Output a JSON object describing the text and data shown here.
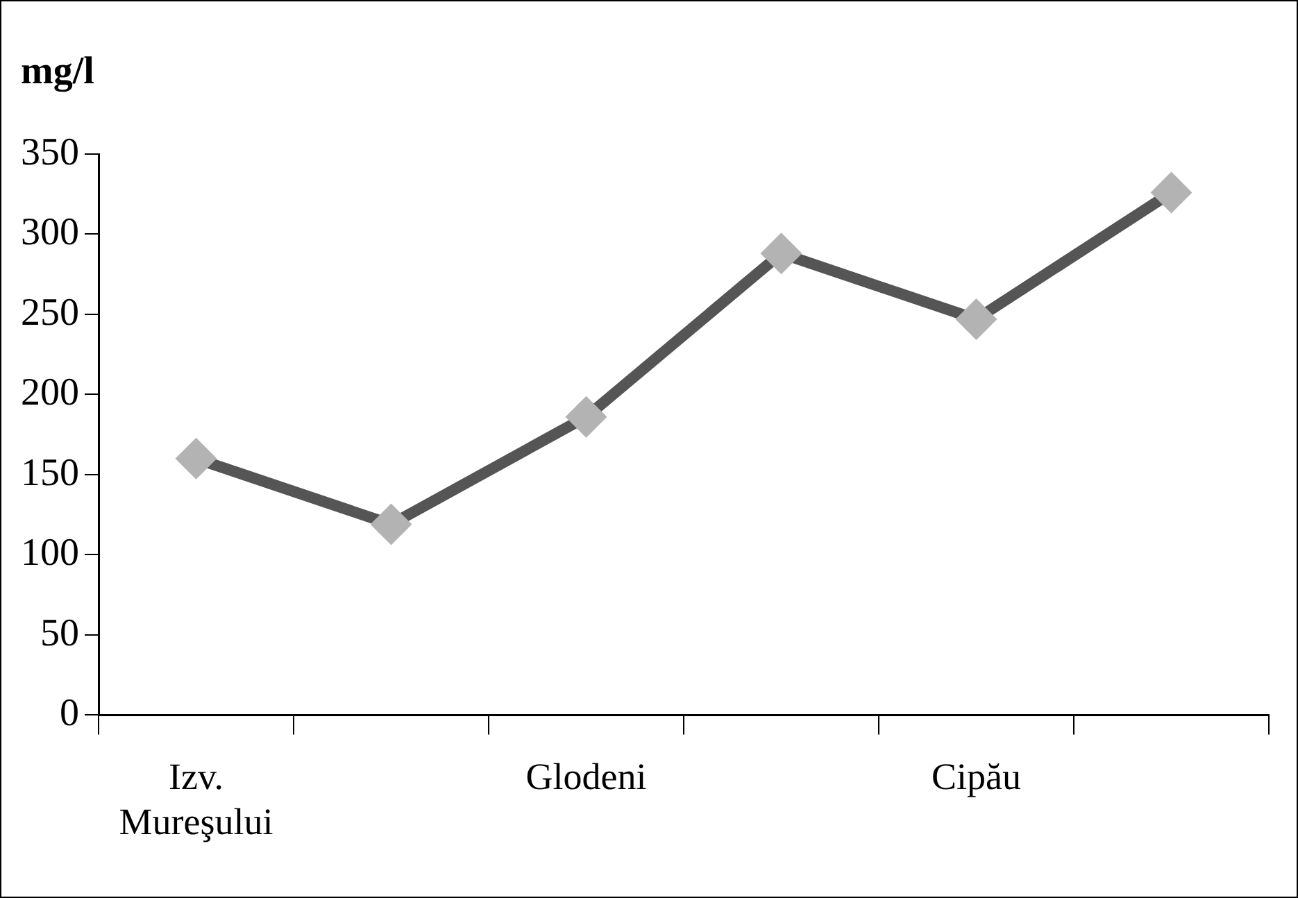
{
  "chart_data": {
    "type": "line",
    "ylabel": "mg/l",
    "categories": [
      "Izv. Mureşului",
      null,
      "Glodeni",
      null,
      "Cipău",
      null
    ],
    "series": [
      {
        "color": "#555555",
        "values": [
          160,
          119,
          186,
          288,
          247,
          326
        ]
      }
    ],
    "ylim": [
      0,
      350
    ],
    "yticks": [
      0,
      50,
      100,
      150,
      200,
      250,
      300,
      350
    ],
    "grid": false,
    "legend": false,
    "marker": "diamond",
    "line_style": "solid"
  }
}
